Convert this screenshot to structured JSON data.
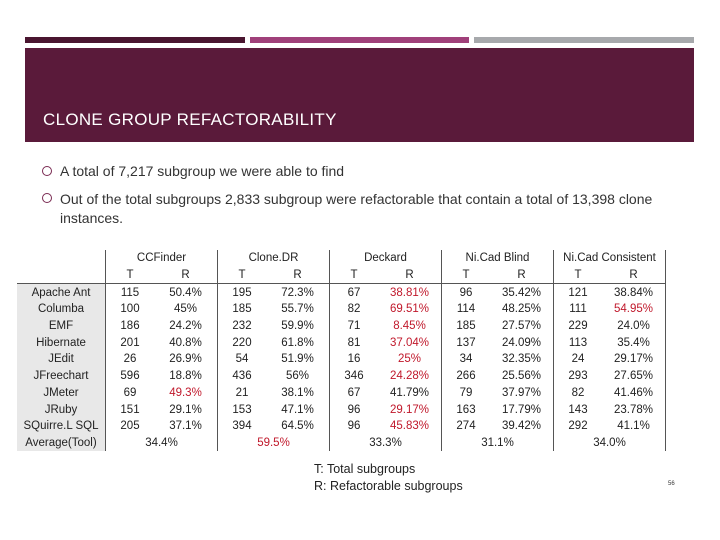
{
  "slide": {
    "title": "CLONE GROUP REFACTORABILITY",
    "bullets": [
      "A total of 7,217 subgroup we were able to find",
      "Out of the total subgroups 2,833 subgroup were refactorable that contain a total of 13,398 clone instances."
    ],
    "legend": [
      "T: Total subgroups",
      "R: Refactorable subgroups"
    ],
    "page_number": "56"
  },
  "table": {
    "tools": [
      "CCFinder",
      "Clone.DR",
      "Deckard",
      "Ni.Cad Blind",
      "Ni.Cad Consistent"
    ],
    "t_label": "T",
    "r_label": "R",
    "rows": [
      {
        "name": "Apache Ant",
        "cells": [
          [
            "115",
            "50.4%"
          ],
          [
            "195",
            "72.3%"
          ],
          [
            "67",
            "38.81%"
          ],
          [
            "96",
            "35.42%"
          ],
          [
            "121",
            "38.84%"
          ]
        ]
      },
      {
        "name": "Columba",
        "cells": [
          [
            "100",
            "45%"
          ],
          [
            "185",
            "55.7%"
          ],
          [
            "82",
            "69.51%"
          ],
          [
            "114",
            "48.25%"
          ],
          [
            "111",
            "54.95%"
          ]
        ]
      },
      {
        "name": "EMF",
        "cells": [
          [
            "186",
            "24.2%"
          ],
          [
            "232",
            "59.9%"
          ],
          [
            "71",
            "8.45%"
          ],
          [
            "185",
            "27.57%"
          ],
          [
            "229",
            "24.0%"
          ]
        ]
      },
      {
        "name": "Hibernate",
        "cells": [
          [
            "201",
            "40.8%"
          ],
          [
            "220",
            "61.8%"
          ],
          [
            "81",
            "37.04%"
          ],
          [
            "137",
            "24.09%"
          ],
          [
            "113",
            "35.4%"
          ]
        ]
      },
      {
        "name": "JEdit",
        "cells": [
          [
            "26",
            "26.9%"
          ],
          [
            "54",
            "51.9%"
          ],
          [
            "16",
            "25%"
          ],
          [
            "34",
            "32.35%"
          ],
          [
            "24",
            "29.17%"
          ]
        ]
      },
      {
        "name": "JFreechart",
        "cells": [
          [
            "596",
            "18.8%"
          ],
          [
            "436",
            "56%"
          ],
          [
            "346",
            "24.28%"
          ],
          [
            "266",
            "25.56%"
          ],
          [
            "293",
            "27.65%"
          ]
        ]
      },
      {
        "name": "JMeter",
        "cells": [
          [
            "69",
            "49.3%"
          ],
          [
            "21",
            "38.1%"
          ],
          [
            "67",
            "41.79%"
          ],
          [
            "79",
            "37.97%"
          ],
          [
            "82",
            "41.46%"
          ]
        ]
      },
      {
        "name": "JRuby",
        "cells": [
          [
            "151",
            "29.1%"
          ],
          [
            "153",
            "47.1%"
          ],
          [
            "96",
            "29.17%"
          ],
          [
            "163",
            "17.79%"
          ],
          [
            "143",
            "23.78%"
          ]
        ]
      },
      {
        "name": "SQuirre.L SQL",
        "cells": [
          [
            "205",
            "37.1%"
          ],
          [
            "394",
            "64.5%"
          ],
          [
            "96",
            "45.83%"
          ],
          [
            "274",
            "39.42%"
          ],
          [
            "292",
            "41.1%"
          ]
        ]
      }
    ],
    "average": {
      "name": "Average(Tool)",
      "values": [
        "34.4%",
        "59.5%",
        "33.3%",
        "31.1%",
        "34.0%"
      ]
    },
    "highlight_color": "#c0182b",
    "highlighted": [
      [
        0,
        2,
        1
      ],
      [
        1,
        2,
        1
      ],
      [
        2,
        2,
        1
      ],
      [
        3,
        2,
        1
      ],
      [
        4,
        2,
        1
      ],
      [
        5,
        2,
        1
      ],
      [
        6,
        0,
        1
      ],
      [
        7,
        2,
        1
      ],
      [
        8,
        2,
        1
      ],
      [
        1,
        4,
        1
      ]
    ],
    "highlight_note": "row index, tool index, cell index (1 = R value)"
  }
}
